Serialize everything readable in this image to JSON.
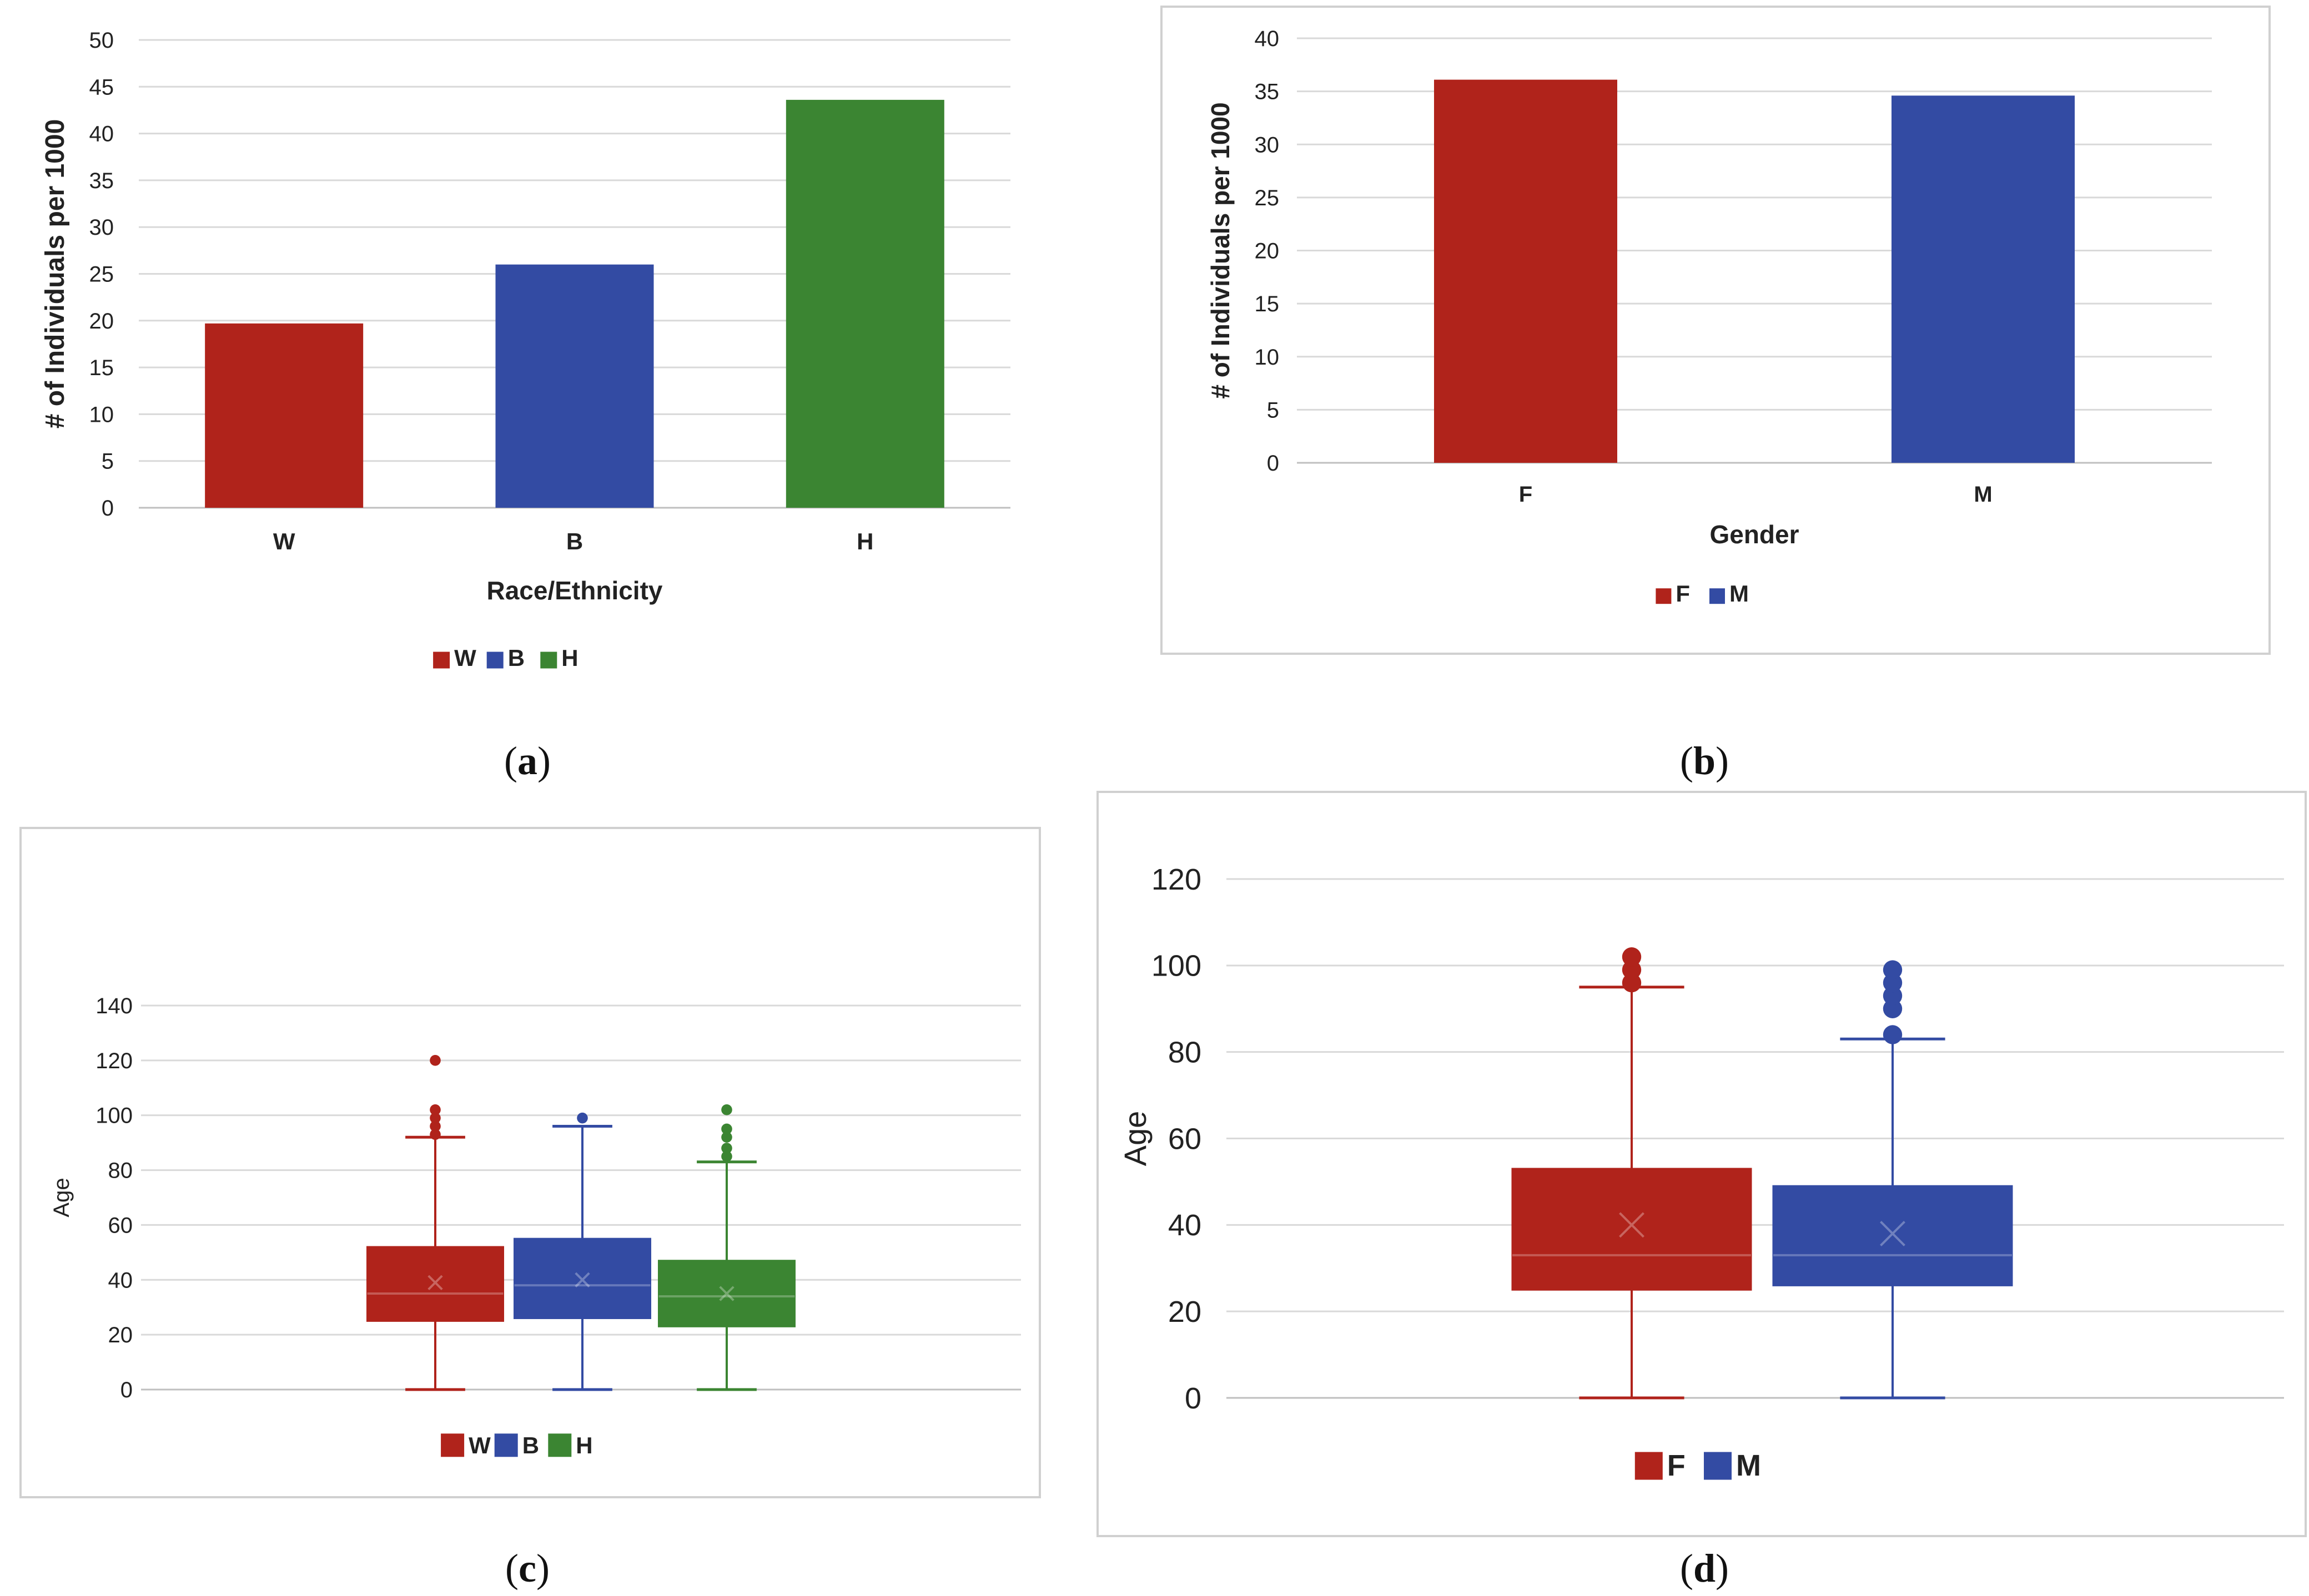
{
  "colors": {
    "red": "#B0231B",
    "blue": "#334BA3",
    "green": "#3B8532",
    "grid": "#D9D9D9",
    "axis": "#BFBFBF",
    "border": "#D0D0D0"
  },
  "chart_data": [
    {
      "id": "a",
      "type": "bar",
      "caption": "a",
      "title": "",
      "xlabel": "Race/Ethnicity",
      "ylabel": "# of Individuals per 1000",
      "categories": [
        "W",
        "B",
        "H"
      ],
      "values": [
        19.7,
        26.0,
        43.6
      ],
      "colors": [
        "#B0231B",
        "#334BA3",
        "#3B8532"
      ],
      "ylim": [
        0,
        50
      ],
      "yticks": [
        "0",
        "5",
        "10",
        "15",
        "20",
        "25",
        "30",
        "35",
        "40",
        "45",
        "50"
      ],
      "legend": [
        "W",
        "B",
        "H"
      ],
      "legend_position": "bottom",
      "grid": true
    },
    {
      "id": "b",
      "type": "bar",
      "caption": "b",
      "title": "",
      "xlabel": "Gender",
      "ylabel": "# of Individuals per 1000",
      "categories": [
        "F",
        "M"
      ],
      "values": [
        36.1,
        34.6
      ],
      "colors": [
        "#B0231B",
        "#334BA3"
      ],
      "ylim": [
        0,
        40
      ],
      "yticks": [
        "0",
        "5",
        "10",
        "15",
        "20",
        "25",
        "30",
        "35",
        "40"
      ],
      "legend": [
        "F",
        "M"
      ],
      "legend_position": "bottom",
      "grid": true
    },
    {
      "id": "c",
      "type": "box",
      "caption": "c",
      "title": "",
      "xlabel": "",
      "ylabel": "Age",
      "ylim": [
        0,
        140
      ],
      "yticks": [
        "0",
        "20",
        "40",
        "60",
        "80",
        "100",
        "120",
        "140"
      ],
      "legend": [
        "W",
        "B",
        "H"
      ],
      "legend_position": "bottom",
      "grid": true,
      "boxes": [
        {
          "name": "W",
          "color": "#B0231B",
          "min": 0,
          "q1": 25,
          "median": 35,
          "q3": 52,
          "max": 92,
          "mean": 39,
          "outliers": [
            93,
            96,
            99,
            102,
            120
          ]
        },
        {
          "name": "B",
          "color": "#334BA3",
          "min": 0,
          "q1": 26,
          "median": 38,
          "q3": 55,
          "max": 96,
          "mean": 40,
          "outliers": [
            99
          ]
        },
        {
          "name": "H",
          "color": "#3B8532",
          "min": 0,
          "q1": 23,
          "median": 34,
          "q3": 47,
          "max": 83,
          "mean": 35,
          "outliers": [
            85,
            88,
            92,
            95,
            102
          ]
        }
      ]
    },
    {
      "id": "d",
      "type": "box",
      "caption": "d",
      "title": "",
      "xlabel": "",
      "ylabel": "Age",
      "ylim": [
        0,
        120
      ],
      "yticks": [
        "0",
        "20",
        "40",
        "60",
        "80",
        "100",
        "120"
      ],
      "legend": [
        "F",
        "M"
      ],
      "legend_position": "bottom",
      "grid": true,
      "boxes": [
        {
          "name": "F",
          "color": "#B0231B",
          "min": 0,
          "q1": 25,
          "median": 33,
          "q3": 53,
          "max": 95,
          "mean": 40,
          "outliers": [
            96,
            99,
            102
          ]
        },
        {
          "name": "M",
          "color": "#334BA3",
          "min": 0,
          "q1": 26,
          "median": 33,
          "q3": 49,
          "max": 83,
          "mean": 38,
          "outliers": [
            84,
            90,
            93,
            96,
            99
          ]
        }
      ]
    }
  ]
}
